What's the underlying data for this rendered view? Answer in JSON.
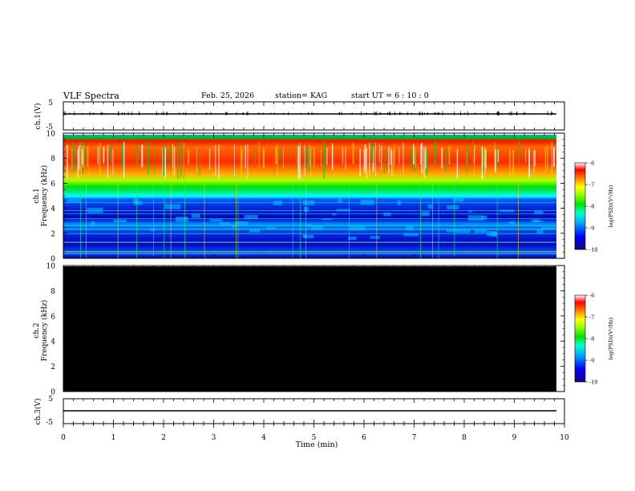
{
  "header": {
    "title": "VLF Spectra",
    "date": "Feb. 25, 2026",
    "station": "station= KAG",
    "start": "start  UT =   6 : 10 : 0"
  },
  "chart_data": [
    {
      "type": "line",
      "id": "ch1-voltage",
      "ylabel": "ch.1(V)",
      "ylim": [
        -5,
        5
      ],
      "yticks": [
        "5",
        "-5"
      ],
      "xlim": [
        0,
        10
      ],
      "series": [
        {
          "x": [
            0,
            9.85
          ],
          "values": [
            0,
            0
          ]
        }
      ],
      "note_shape": "flat trace near 0 V with small fluctuations"
    },
    {
      "type": "heatmap",
      "id": "ch1-spectrogram",
      "ylabel_line1": "ch.1",
      "ylabel_line2": "Frequency (kHz)",
      "xlim": [
        0,
        10
      ],
      "ylim": [
        0,
        10
      ],
      "yticks": [
        "0",
        "2",
        "4",
        "6",
        "8",
        "10"
      ],
      "data_extent_min": 9.85,
      "bands": [
        {
          "from_khz": 0,
          "to_khz": 0.5,
          "level": "blue"
        },
        {
          "from_khz": 0.5,
          "to_khz": 4.8,
          "level": "blue-cyan"
        },
        {
          "from_khz": 4.8,
          "to_khz": 6.5,
          "level": "green-yellow"
        },
        {
          "from_khz": 6.5,
          "to_khz": 9.8,
          "level": "red-yellow"
        }
      ],
      "colorbar": {
        "label": "log(PSD)(V²/Hz)",
        "ticks": [
          "-6",
          "-7",
          "-8",
          "-9",
          "-10"
        ],
        "range": [
          -10,
          -6
        ]
      }
    },
    {
      "type": "heatmap",
      "id": "ch2-spectrogram",
      "ylabel_line1": "ch.2",
      "ylabel_line2": "Frequency (kHz)",
      "xlim": [
        0,
        10
      ],
      "ylim": [
        0,
        10
      ],
      "yticks": [
        "0",
        "2",
        "4",
        "6",
        "8",
        "10"
      ],
      "data_extent_min": 9.85,
      "fill": "#000000",
      "colorbar": {
        "label": "log(PSD)(V²/Hz)",
        "ticks": [
          "-6",
          "-7",
          "-8",
          "-9",
          "-10"
        ],
        "range": [
          -10,
          -6
        ]
      }
    },
    {
      "type": "line",
      "id": "ch3-voltage",
      "ylabel": "ch.3(V)",
      "ylim": [
        -5,
        5
      ],
      "yticks": [
        "5",
        "-5"
      ],
      "xlim": [
        0,
        10
      ],
      "series": [
        {
          "x": [
            0,
            9.85
          ],
          "values": [
            0,
            0
          ]
        }
      ]
    }
  ],
  "xaxis": {
    "label": "Time  (min)",
    "ticks": [
      "0",
      "1",
      "2",
      "3",
      "4",
      "5",
      "6",
      "7",
      "8",
      "9",
      "10"
    ]
  }
}
